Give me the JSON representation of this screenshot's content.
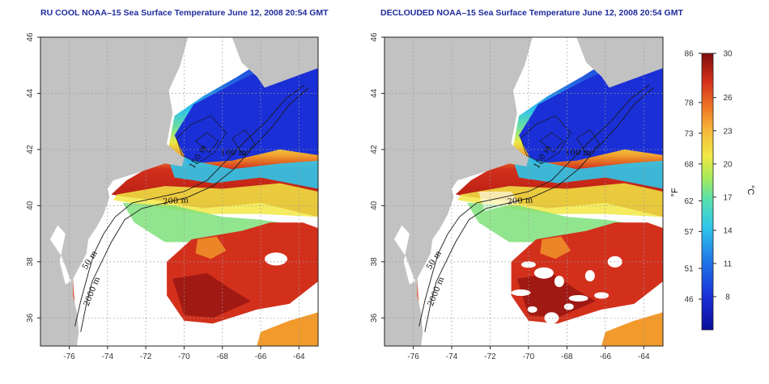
{
  "panels": [
    {
      "id": "left",
      "title": "RU COOL NOAA–15 Sea Surface Temperature June 12, 2008 20:54 GMT",
      "declouded": false
    },
    {
      "id": "right",
      "title": "DECLOUDED NOAA–15 Sea Surface Temperature June 12, 2008 20:54 GMT",
      "declouded": true
    }
  ],
  "axes": {
    "x_ticks": [
      "-76",
      "-74",
      "-72",
      "-70",
      "-68",
      "-66",
      "-64"
    ],
    "y_ticks": [
      "36",
      "38",
      "40",
      "42",
      "44",
      "46"
    ],
    "lon_range": [
      -77.5,
      -63
    ],
    "lat_range": [
      35,
      46
    ]
  },
  "contours": {
    "labels": [
      "200 m",
      "50 m",
      "2000 m",
      "100 m",
      "150 m"
    ]
  },
  "colorbar": {
    "celsius_ticks": [
      "30",
      "26",
      "23",
      "20",
      "17",
      "14",
      "11",
      "8"
    ],
    "fahrenheit_ticks": [
      "86",
      "78",
      "73",
      "68",
      "62",
      "57",
      "51",
      "46"
    ],
    "celsius_unit": "°C",
    "fahrenheit_unit": "°F",
    "min_c": 5,
    "max_c": 30
  },
  "colors": {
    "land": "#c2c2c2",
    "no_data": "#ffffff",
    "title": "#1f2b9c",
    "deep_blue": "#1a2fd6",
    "cyan": "#2ec5ea",
    "green": "#7ee07a",
    "yellow": "#f2e844",
    "orange": "#f29a2c",
    "red": "#c9201b",
    "dark_red": "#8c0f0f"
  }
}
